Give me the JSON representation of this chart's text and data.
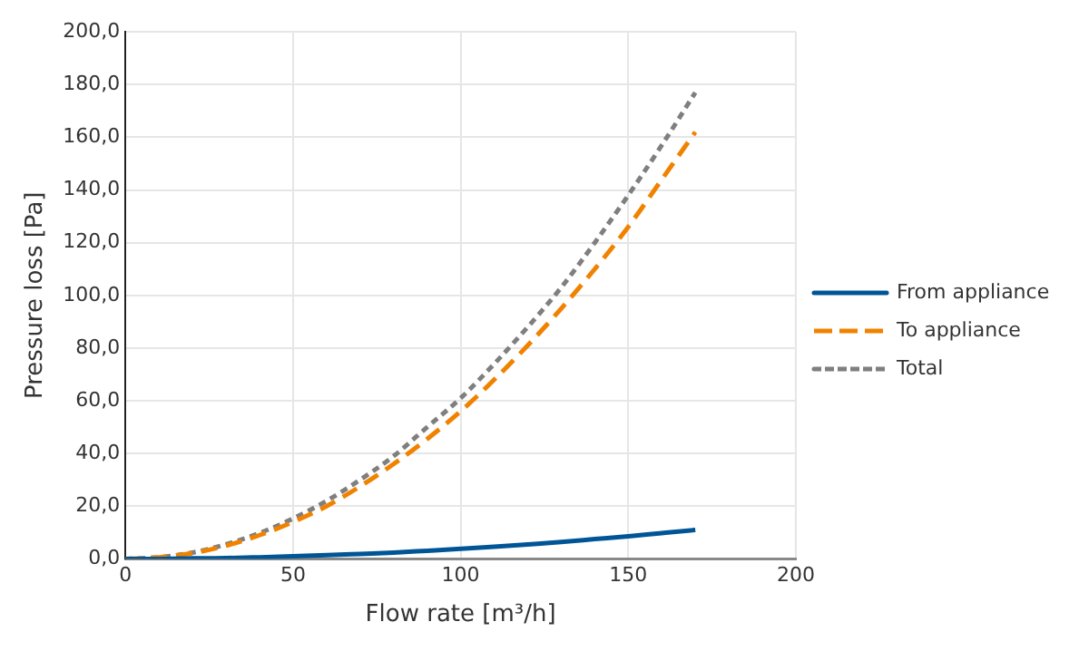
{
  "chart_data": {
    "type": "line",
    "xlabel": "Flow rate [m³/h]",
    "ylabel": "Pressure loss [Pa]",
    "x": [
      0,
      10,
      20,
      30,
      40,
      50,
      60,
      70,
      80,
      90,
      100,
      110,
      120,
      130,
      140,
      150,
      160,
      170
    ],
    "series": [
      {
        "name": "From appliance",
        "color": "#005596",
        "line_style": "solid",
        "values": [
          0,
          0,
          0.2,
          0.3,
          0.6,
          1,
          1.4,
          1.9,
          2.4,
          3.1,
          3.8,
          4.6,
          5.5,
          6.4,
          7.5,
          8.6,
          9.8,
          11
        ]
      },
      {
        "name": "To appliance",
        "color": "#f08200",
        "line_style": "dashed",
        "values": [
          0,
          0.6,
          2.2,
          5,
          9,
          14,
          20,
          27.5,
          36,
          45.5,
          56,
          68,
          81,
          95,
          110,
          126,
          144,
          162
        ]
      },
      {
        "name": "Total",
        "color": "#7f7f7f",
        "line_style": "dotted",
        "values": [
          0,
          0.6,
          2.4,
          5.5,
          9.8,
          15.3,
          22,
          30,
          39,
          50,
          61,
          74,
          88,
          103,
          120,
          138,
          157,
          177
        ]
      }
    ],
    "xlim": [
      0,
      200
    ],
    "xticks": [
      0,
      50,
      100,
      150,
      200
    ],
    "ylim": [
      0,
      200
    ],
    "yticks": [
      {
        "value": 0,
        "label": "0,0"
      },
      {
        "value": 20,
        "label": "20,0"
      },
      {
        "value": 40,
        "label": "40,0"
      },
      {
        "value": 60,
        "label": "60,0"
      },
      {
        "value": 80,
        "label": "80,0"
      },
      {
        "value": 100,
        "label": "100,0"
      },
      {
        "value": 120,
        "label": "120,0"
      },
      {
        "value": 140,
        "label": "140,0"
      },
      {
        "value": 160,
        "label": "160,0"
      },
      {
        "value": 180,
        "label": "180,0"
      },
      {
        "value": 200,
        "label": "200,0"
      }
    ],
    "grid": true,
    "legend": "right",
    "marker": "none"
  }
}
